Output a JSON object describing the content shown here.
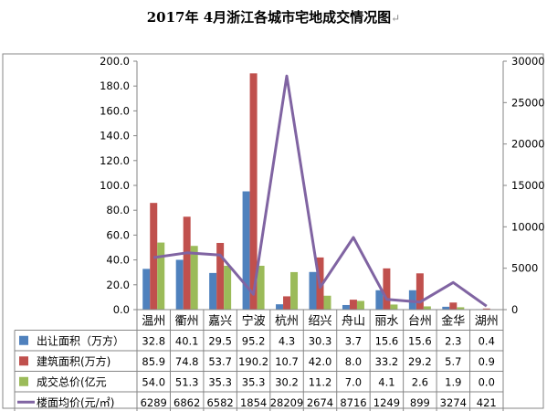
{
  "title": "2017年 4月浙江各城市宅地成交情况图",
  "title_mark": "↵",
  "chart_data": {
    "type": "bar",
    "categories": [
      "温州",
      "衢州",
      "嘉兴",
      "宁波",
      "杭州",
      "绍兴",
      "舟山",
      "丽水",
      "台州",
      "金华",
      "湖州"
    ],
    "y_left_ticks": [
      "0.0",
      "20.0",
      "40.0",
      "60.0",
      "80.0",
      "100.0",
      "120.0",
      "140.0",
      "160.0",
      "180.0",
      "200.0"
    ],
    "y_right_ticks": [
      "0",
      "5000",
      "10000",
      "15000",
      "20000",
      "25000",
      "30000"
    ],
    "ylim_left": [
      0,
      200
    ],
    "ylim_right": [
      0,
      30000
    ],
    "grid": false,
    "series": [
      {
        "name": "出让面积（万方）",
        "type": "bar",
        "axis": "left",
        "color": "#4f81bd",
        "values": [
          32.8,
          40.1,
          29.5,
          95.2,
          4.3,
          30.3,
          3.7,
          15.6,
          15.6,
          2.3,
          0.4
        ],
        "labels": [
          "32.8",
          "40.1",
          "29.5",
          "95.2",
          "4.3",
          "30.3",
          "3.7",
          "15.6",
          "15.6",
          "2.3",
          "0.4"
        ]
      },
      {
        "name": "建筑面积(万方)",
        "type": "bar",
        "axis": "left",
        "color": "#c0504d",
        "values": [
          85.9,
          74.8,
          53.7,
          190.2,
          10.7,
          42.0,
          8.0,
          33.2,
          29.2,
          5.7,
          0.9
        ],
        "labels": [
          "85.9",
          "74.8",
          "53.7",
          "190.2",
          "10.7",
          "42.0",
          "8.0",
          "33.2",
          "29.2",
          "5.7",
          "0.9"
        ]
      },
      {
        "name": "成交总价(亿元",
        "type": "bar",
        "axis": "left",
        "color": "#9bbb59",
        "values": [
          54.0,
          51.3,
          35.3,
          35.3,
          30.2,
          11.2,
          7.0,
          4.1,
          2.6,
          1.9,
          0.0
        ],
        "labels": [
          "54.0",
          "51.3",
          "35.3",
          "35.3",
          "30.2",
          "11.2",
          "7.0",
          "4.1",
          "2.6",
          "1.9",
          "0.0"
        ]
      },
      {
        "name": "楼面均价(元/㎡)",
        "type": "line",
        "axis": "right",
        "color": "#8064a2",
        "values": [
          6289,
          6862,
          6582,
          1854,
          28209,
          2674,
          8716,
          1249,
          899,
          3274,
          421
        ],
        "labels": [
          "6289",
          "6862",
          "6582",
          "1854",
          "28209",
          "2674",
          "8716",
          "1249",
          "899",
          "3274",
          "421"
        ]
      }
    ]
  }
}
